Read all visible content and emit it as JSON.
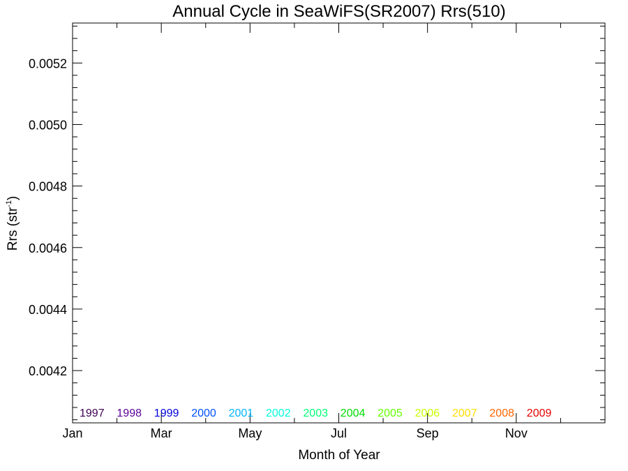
{
  "chart_data": {
    "type": "line",
    "title": "Annual Cycle in SeaWiFS(SR2007) Rrs(510)",
    "xlabel": "Month of Year",
    "ylabel_main": "Rrs (str",
    "ylabel_sup": "-1",
    "ylabel_close": ")",
    "xlim": [
      1,
      13
    ],
    "ylim": [
      0.00403,
      0.00533
    ],
    "x_ticks": [
      {
        "month": 1,
        "label": "Jan"
      },
      {
        "month": 3,
        "label": "Mar"
      },
      {
        "month": 5,
        "label": "May"
      },
      {
        "month": 7,
        "label": "Jul"
      },
      {
        "month": 9,
        "label": "Sep"
      },
      {
        "month": 11,
        "label": "Nov"
      }
    ],
    "x_minor_ticks": [
      2,
      4,
      6,
      8,
      10,
      12
    ],
    "y_ticks": [
      {
        "value": 0.0042,
        "label": "0.0042"
      },
      {
        "value": 0.0044,
        "label": "0.0044"
      },
      {
        "value": 0.0046,
        "label": "0.0046"
      },
      {
        "value": 0.0048,
        "label": "0.0048"
      },
      {
        "value": 0.005,
        "label": "0.0050"
      },
      {
        "value": 0.0052,
        "label": "0.0052"
      }
    ],
    "y_minor_step": 4e-05,
    "grid": false,
    "legend_position": "bottom",
    "series": [
      {
        "name": "1997",
        "color": "#3c0050",
        "values": []
      },
      {
        "name": "1998",
        "color": "#5a0096",
        "values": []
      },
      {
        "name": "1999",
        "color": "#0000dc",
        "values": []
      },
      {
        "name": "2000",
        "color": "#0050ff",
        "values": []
      },
      {
        "name": "2001",
        "color": "#00b4ff",
        "values": []
      },
      {
        "name": "2002",
        "color": "#00ffdc",
        "values": []
      },
      {
        "name": "2003",
        "color": "#00ff78",
        "values": []
      },
      {
        "name": "2004",
        "color": "#00dc00",
        "values": []
      },
      {
        "name": "2005",
        "color": "#64ff00",
        "values": []
      },
      {
        "name": "2006",
        "color": "#c8ff00",
        "values": []
      },
      {
        "name": "2007",
        "color": "#ffdc00",
        "values": []
      },
      {
        "name": "2008",
        "color": "#ff6400",
        "values": []
      },
      {
        "name": "2009",
        "color": "#e60000",
        "values": []
      }
    ]
  }
}
